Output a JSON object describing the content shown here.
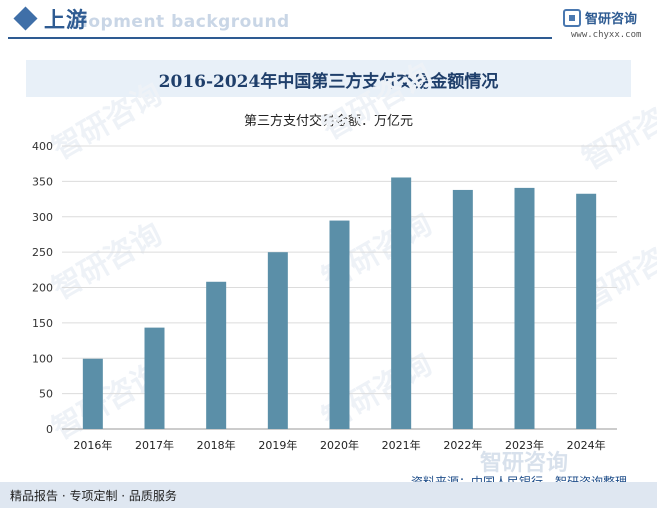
{
  "header": {
    "section_title": "上游",
    "section_bg_text": "elopment background",
    "brand_name": "智研咨询",
    "brand_url": "www.chyxx.com"
  },
  "chart_data": {
    "type": "bar",
    "title": "2016-2024年中国第三方支付交易金额情况",
    "subtitle": "第三方支付交易金额：万亿元",
    "categories": [
      "2016年",
      "2017年",
      "2018年",
      "2019年",
      "2020年",
      "2021年",
      "2022年",
      "2023年",
      "2024年"
    ],
    "values": [
      99.3,
      143.3,
      208.1,
      249.9,
      294.6,
      355.5,
      337.9,
      340.8,
      332.5
    ],
    "ylim": [
      0,
      400
    ],
    "yticks": [
      0,
      50,
      100,
      150,
      200,
      250,
      300,
      350,
      400
    ],
    "grid": true,
    "bar_color": "#5b8fa8"
  },
  "watermark": "智研咨询",
  "footer": {
    "left": "精品报告 · 专项定制 · 品质服务",
    "source": "资料来源：中国人民银行、智研咨询整理"
  }
}
